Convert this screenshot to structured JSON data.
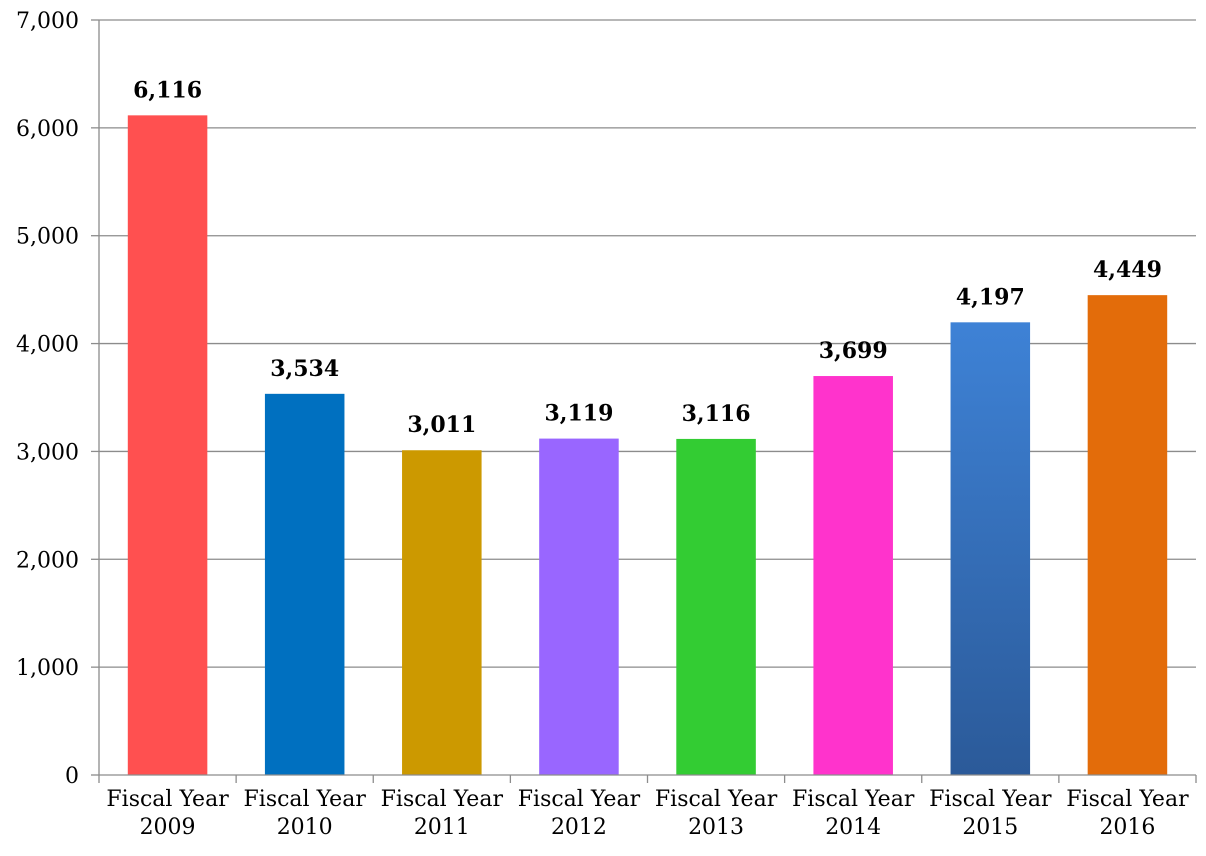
{
  "chart_data": {
    "type": "bar",
    "title": "",
    "xlabel": "",
    "ylabel": "",
    "categories": [
      [
        "Fiscal Year",
        "2009"
      ],
      [
        "Fiscal Year",
        "2010"
      ],
      [
        "Fiscal Year",
        "2011"
      ],
      [
        "Fiscal Year",
        "2012"
      ],
      [
        "Fiscal Year",
        "2013"
      ],
      [
        "Fiscal Year",
        "2014"
      ],
      [
        "Fiscal Year",
        "2015"
      ],
      [
        "Fiscal Year",
        "2016"
      ]
    ],
    "values": [
      6116,
      3534,
      3011,
      3119,
      3116,
      3699,
      4197,
      4449
    ],
    "data_labels": [
      "6,116",
      "3,534",
      "3,011",
      "3,119",
      "3,116",
      "3,699",
      "4,197",
      "4,449"
    ],
    "bar_colors": [
      "#ff5050",
      "#0070c0",
      "#cc9900",
      "#9966ff",
      "#33cc33",
      "#ff33cc",
      "#3a7bd0",
      "#e36c0a"
    ],
    "ylim": [
      0,
      7000
    ],
    "y_ticks": [
      0,
      1000,
      2000,
      3000,
      4000,
      5000,
      6000,
      7000
    ],
    "y_tick_labels": [
      "0",
      "1,000",
      "2,000",
      "3,000",
      "4,000",
      "5,000",
      "6,000",
      "7,000"
    ],
    "grid": true,
    "legend": "none"
  }
}
